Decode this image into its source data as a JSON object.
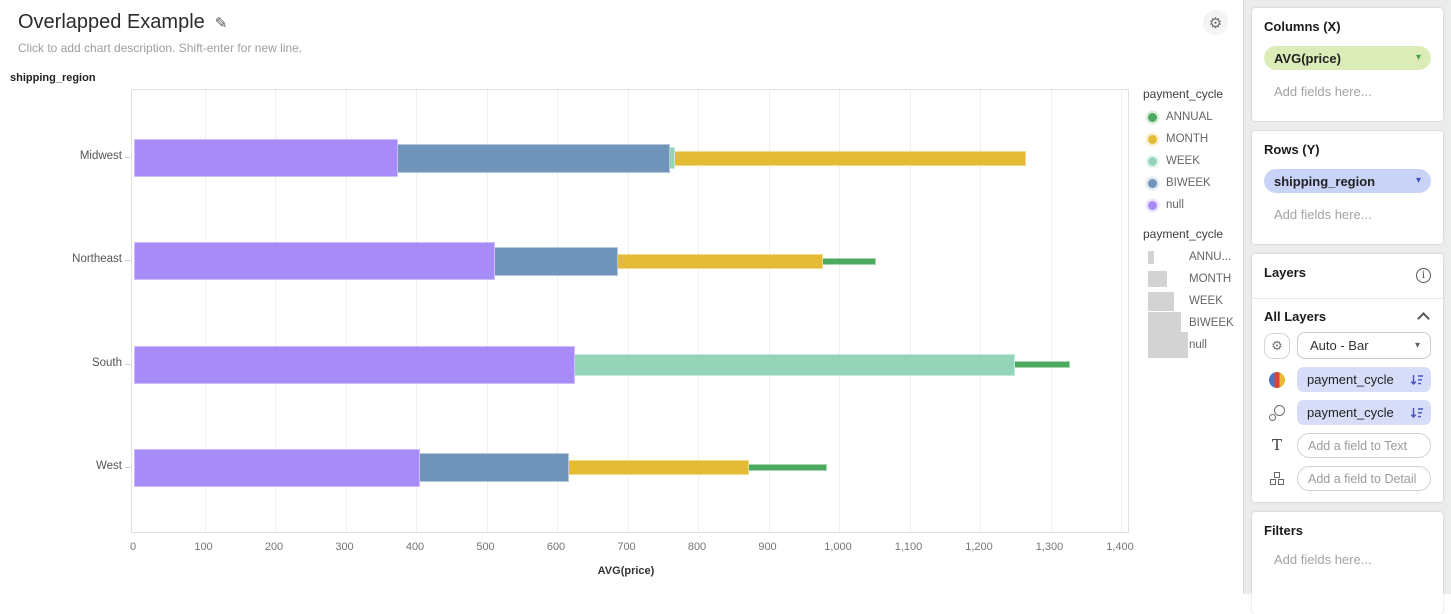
{
  "header": {
    "title": "Overlapped Example",
    "description_placeholder": "Click to add chart description. Shift-enter for new line."
  },
  "icons": {
    "edit": "✎",
    "gear": "⚙",
    "info": "i",
    "caret_down": "▾"
  },
  "chart_data": {
    "type": "bar",
    "orientation": "horizontal",
    "overlapped": true,
    "title": "Overlapped Example",
    "xlabel": "AVG(price)",
    "ylabel": "shipping_region",
    "xlim": [
      0,
      1400
    ],
    "x_tick_step": 100,
    "x_tick_labels": [
      "0",
      "100",
      "200",
      "300",
      "400",
      "500",
      "600",
      "700",
      "800",
      "900",
      "1,000",
      "1,100",
      "1,200",
      "1,300",
      "1,400"
    ],
    "categories": [
      "Midwest",
      "Northeast",
      "South",
      "West"
    ],
    "series": [
      {
        "name": "ANNUAL",
        "color": "#4caa60",
        "stroke": "#a5d6ab",
        "values": [
          null,
          1052,
          1328,
          983
        ]
      },
      {
        "name": "MONTH",
        "color": "#e3bb35",
        "stroke": "#f0da8e",
        "values": [
          1265,
          978,
          null,
          873
        ]
      },
      {
        "name": "WEEK",
        "color": "#94d5ba",
        "stroke": "#c4e8da",
        "values": [
          767,
          null,
          1250,
          null
        ]
      },
      {
        "name": "BIWEEK",
        "color": "#7094ba",
        "stroke": "#b3c8dc",
        "values": [
          760,
          686,
          null,
          617
        ]
      },
      {
        "name": "null",
        "color": "#a78cf7",
        "stroke": "#cfbdfb",
        "values": [
          375,
          512,
          625,
          405
        ]
      }
    ],
    "legend_color": {
      "title": "payment_cycle",
      "items": [
        "ANNUAL",
        "MONTH",
        "WEEK",
        "BIWEEK",
        "null"
      ]
    },
    "legend_size": {
      "title": "payment_cycle",
      "items": [
        "ANNU...",
        "MONTH",
        "WEEK",
        "BIWEEK",
        "null"
      ]
    },
    "grid": true,
    "legend_position": "right"
  },
  "panel": {
    "columns": {
      "title": "Columns (X)",
      "field": "AVG(price)",
      "placeholder": "Add fields here..."
    },
    "rows": {
      "title": "Rows (Y)",
      "field": "shipping_region",
      "placeholder": "Add fields here..."
    },
    "layers": {
      "title": "Layers",
      "all_layers": "All Layers",
      "mark_type": "Auto - Bar",
      "color_field": "payment_cycle",
      "size_field": "payment_cycle",
      "text_placeholder": "Add a field to Text",
      "detail_placeholder": "Add a field to Detail"
    },
    "filters": {
      "title": "Filters",
      "placeholder": "Add fields here..."
    }
  }
}
